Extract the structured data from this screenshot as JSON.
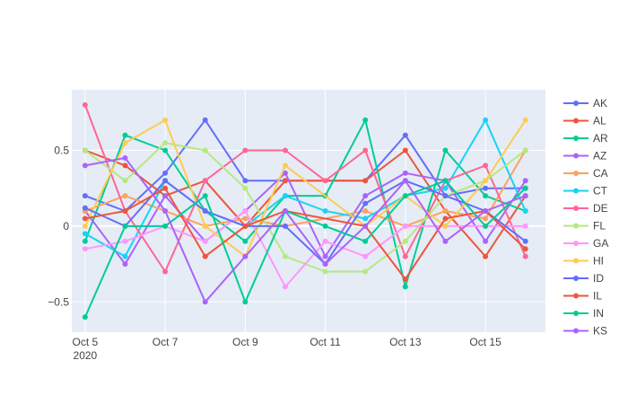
{
  "chart_data": {
    "type": "line",
    "x_dates": [
      "2020-10-05",
      "2020-10-06",
      "2020-10-07",
      "2020-10-08",
      "2020-10-09",
      "2020-10-10",
      "2020-10-11",
      "2020-10-12",
      "2020-10-13",
      "2020-10-14",
      "2020-10-15",
      "2020-10-16"
    ],
    "x_ticks": [
      {
        "date": "2020-10-05",
        "label": "Oct 5",
        "sublabel": "2020"
      },
      {
        "date": "2020-10-07",
        "label": "Oct 7",
        "sublabel": ""
      },
      {
        "date": "2020-10-09",
        "label": "Oct 9",
        "sublabel": ""
      },
      {
        "date": "2020-10-11",
        "label": "Oct 11",
        "sublabel": ""
      },
      {
        "date": "2020-10-13",
        "label": "Oct 13",
        "sublabel": ""
      },
      {
        "date": "2020-10-15",
        "label": "Oct 15",
        "sublabel": ""
      }
    ],
    "y_ticks": [
      {
        "value": 0.5,
        "label": "0.5"
      },
      {
        "value": 0,
        "label": "0"
      },
      {
        "value": -0.5,
        "label": "−0.5"
      }
    ],
    "ylim": [
      -0.7,
      0.9
    ],
    "xlim": [
      "2020-10-04 16:00",
      "2020-10-16 12:00"
    ],
    "grid": true,
    "legend_position": "right",
    "background": "#e5ecf6",
    "series": [
      {
        "name": "AK",
        "color": "#636efa",
        "points": [
          [
            "2020-10-05",
            0.2
          ],
          [
            "2020-10-06",
            0.1
          ],
          [
            "2020-10-07",
            0.35
          ],
          [
            "2020-10-08",
            0.7
          ],
          [
            "2020-10-09",
            0.3
          ],
          [
            "2020-10-10",
            0.3
          ],
          [
            "2020-10-12",
            0.3
          ],
          [
            "2020-10-13",
            0.6
          ],
          [
            "2020-10-14",
            0.2
          ],
          [
            "2020-10-15",
            0.25
          ],
          [
            "2020-10-16",
            0.25
          ]
        ]
      },
      {
        "name": "AL",
        "color": "#ef553b",
        "points": [
          [
            "2020-10-05",
            0.5
          ],
          [
            "2020-10-06",
            0.4
          ],
          [
            "2020-10-07",
            0.2
          ],
          [
            "2020-10-08",
            0.3
          ],
          [
            "2020-10-09",
            0.0
          ],
          [
            "2020-10-10",
            0.3
          ],
          [
            "2020-10-12",
            0.3
          ],
          [
            "2020-10-13",
            0.5
          ],
          [
            "2020-10-14",
            0.1
          ],
          [
            "2020-10-15",
            -0.2
          ],
          [
            "2020-10-16",
            0.2
          ]
        ]
      },
      {
        "name": "AR",
        "color": "#00cc96",
        "points": [
          [
            "2020-10-05",
            -0.1
          ],
          [
            "2020-10-06",
            0.6
          ],
          [
            "2020-10-07",
            0.5
          ],
          [
            "2020-10-08",
            0.1
          ],
          [
            "2020-10-09",
            -0.1
          ],
          [
            "2020-10-10",
            0.2
          ],
          [
            "2020-10-11",
            0.2
          ],
          [
            "2020-10-12",
            0.7
          ],
          [
            "2020-10-13",
            -0.4
          ],
          [
            "2020-10-14",
            0.5
          ],
          [
            "2020-10-15",
            0.2
          ],
          [
            "2020-10-16",
            0.1
          ]
        ]
      },
      {
        "name": "AZ",
        "color": "#ab63fa",
        "points": [
          [
            "2020-10-05",
            0.1
          ],
          [
            "2020-10-06",
            -0.25
          ],
          [
            "2020-10-07",
            0.2
          ],
          [
            "2020-10-08",
            -0.1
          ],
          [
            "2020-10-09",
            0.1
          ],
          [
            "2020-10-10",
            0.35
          ],
          [
            "2020-10-11",
            -0.2
          ],
          [
            "2020-10-12",
            0.2
          ],
          [
            "2020-10-13",
            0.35
          ],
          [
            "2020-10-14",
            0.3
          ],
          [
            "2020-10-15",
            -0.1
          ],
          [
            "2020-10-16",
            0.3
          ]
        ]
      },
      {
        "name": "CA",
        "color": "#ffa15a",
        "points": [
          [
            "2020-10-05",
            0.1
          ],
          [
            "2020-10-06",
            0.2
          ],
          [
            "2020-10-07",
            0.1
          ],
          [
            "2020-10-08",
            0.0
          ],
          [
            "2020-10-09",
            0.05
          ],
          [
            "2020-10-10",
            0.0
          ],
          [
            "2020-10-12",
            0.1
          ],
          [
            "2020-10-13",
            0.0
          ],
          [
            "2020-10-14",
            0.1
          ],
          [
            "2020-10-15",
            0.05
          ],
          [
            "2020-10-16",
            0.5
          ]
        ]
      },
      {
        "name": "CT",
        "color": "#19d3f3",
        "points": [
          [
            "2020-10-05",
            -0.05
          ],
          [
            "2020-10-06",
            -0.2
          ],
          [
            "2020-10-07",
            0.3
          ],
          [
            "2020-10-08",
            0.1
          ],
          [
            "2020-10-09",
            0.0
          ],
          [
            "2020-10-10",
            0.2
          ],
          [
            "2020-10-11",
            0.1
          ],
          [
            "2020-10-12",
            0.05
          ],
          [
            "2020-10-13",
            0.2
          ],
          [
            "2020-10-14",
            0.25
          ],
          [
            "2020-10-15",
            0.7
          ],
          [
            "2020-10-16",
            0.1
          ]
        ]
      },
      {
        "name": "DE",
        "color": "#ff6692",
        "points": [
          [
            "2020-10-05",
            0.8
          ],
          [
            "2020-10-06",
            0.1
          ],
          [
            "2020-10-07",
            -0.3
          ],
          [
            "2020-10-08",
            0.3
          ],
          [
            "2020-10-09",
            0.5
          ],
          [
            "2020-10-10",
            0.5
          ],
          [
            "2020-10-11",
            0.3
          ],
          [
            "2020-10-12",
            0.5
          ],
          [
            "2020-10-13",
            -0.2
          ],
          [
            "2020-10-14",
            0.3
          ],
          [
            "2020-10-15",
            0.4
          ],
          [
            "2020-10-16",
            -0.2
          ]
        ]
      },
      {
        "name": "FL",
        "color": "#b6e880",
        "points": [
          [
            "2020-10-05",
            0.5
          ],
          [
            "2020-10-06",
            0.3
          ],
          [
            "2020-10-07",
            0.55
          ],
          [
            "2020-10-08",
            0.5
          ],
          [
            "2020-10-09",
            0.25
          ],
          [
            "2020-10-10",
            -0.2
          ],
          [
            "2020-10-11",
            -0.3
          ],
          [
            "2020-10-12",
            -0.3
          ],
          [
            "2020-10-13",
            -0.1
          ],
          [
            "2020-10-14",
            0.2
          ],
          [
            "2020-10-15",
            0.3
          ],
          [
            "2020-10-16",
            0.5
          ]
        ]
      },
      {
        "name": "GA",
        "color": "#ff97ff",
        "points": [
          [
            "2020-10-05",
            -0.15
          ],
          [
            "2020-10-06",
            -0.1
          ],
          [
            "2020-10-07",
            0.0
          ],
          [
            "2020-10-08",
            -0.1
          ],
          [
            "2020-10-09",
            0.1
          ],
          [
            "2020-10-10",
            -0.4
          ],
          [
            "2020-10-11",
            -0.1
          ],
          [
            "2020-10-12",
            -0.2
          ],
          [
            "2020-10-13",
            0.0
          ],
          [
            "2020-10-14",
            0.0
          ],
          [
            "2020-10-15",
            0.0
          ],
          [
            "2020-10-16",
            0.0
          ]
        ]
      },
      {
        "name": "HI",
        "color": "#fecb52",
        "points": [
          [
            "2020-10-05",
            0.0
          ],
          [
            "2020-10-06",
            0.55
          ],
          [
            "2020-10-07",
            0.7
          ],
          [
            "2020-10-08",
            0.0
          ],
          [
            "2020-10-09",
            -0.2
          ],
          [
            "2020-10-10",
            0.4
          ],
          [
            "2020-10-12",
            0.0
          ],
          [
            "2020-10-13",
            0.2
          ],
          [
            "2020-10-14",
            0.0
          ],
          [
            "2020-10-15",
            0.3
          ],
          [
            "2020-10-16",
            0.7
          ]
        ]
      },
      {
        "name": "ID",
        "color": "#636efa",
        "points": [
          [
            "2020-10-05",
            0.12
          ],
          [
            "2020-10-06",
            0.0
          ],
          [
            "2020-10-07",
            0.3
          ],
          [
            "2020-10-08",
            0.1
          ],
          [
            "2020-10-09",
            0.0
          ],
          [
            "2020-10-10",
            0.0
          ],
          [
            "2020-10-11",
            -0.25
          ],
          [
            "2020-10-12",
            0.15
          ],
          [
            "2020-10-13",
            0.3
          ],
          [
            "2020-10-14",
            0.2
          ],
          [
            "2020-10-15",
            0.1
          ],
          [
            "2020-10-16",
            -0.1
          ]
        ]
      },
      {
        "name": "IL",
        "color": "#ef553b",
        "points": [
          [
            "2020-10-05",
            0.05
          ],
          [
            "2020-10-06",
            0.1
          ],
          [
            "2020-10-07",
            0.25
          ],
          [
            "2020-10-08",
            -0.2
          ],
          [
            "2020-10-09",
            0.0
          ],
          [
            "2020-10-10",
            0.1
          ],
          [
            "2020-10-12",
            0.0
          ],
          [
            "2020-10-13",
            -0.35
          ],
          [
            "2020-10-14",
            0.05
          ],
          [
            "2020-10-15",
            0.1
          ],
          [
            "2020-10-16",
            -0.15
          ]
        ]
      },
      {
        "name": "IN",
        "color": "#00cc96",
        "points": [
          [
            "2020-10-05",
            -0.6
          ],
          [
            "2020-10-06",
            0.0
          ],
          [
            "2020-10-07",
            0.0
          ],
          [
            "2020-10-08",
            0.2
          ],
          [
            "2020-10-09",
            -0.5
          ],
          [
            "2020-10-10",
            0.1
          ],
          [
            "2020-10-11",
            0.0
          ],
          [
            "2020-10-12",
            -0.1
          ],
          [
            "2020-10-13",
            0.2
          ],
          [
            "2020-10-14",
            0.3
          ],
          [
            "2020-10-15",
            0.0
          ],
          [
            "2020-10-16",
            0.25
          ]
        ]
      },
      {
        "name": "KS",
        "color": "#ab63fa",
        "points": [
          [
            "2020-10-05",
            0.4
          ],
          [
            "2020-10-06",
            0.45
          ],
          [
            "2020-10-07",
            0.1
          ],
          [
            "2020-10-08",
            -0.5
          ],
          [
            "2020-10-09",
            -0.2
          ],
          [
            "2020-10-10",
            0.1
          ],
          [
            "2020-10-11",
            -0.25
          ],
          [
            "2020-10-12",
            0.0
          ],
          [
            "2020-10-13",
            0.3
          ],
          [
            "2020-10-14",
            -0.1
          ],
          [
            "2020-10-15",
            0.1
          ],
          [
            "2020-10-16",
            0.2
          ]
        ]
      }
    ]
  }
}
